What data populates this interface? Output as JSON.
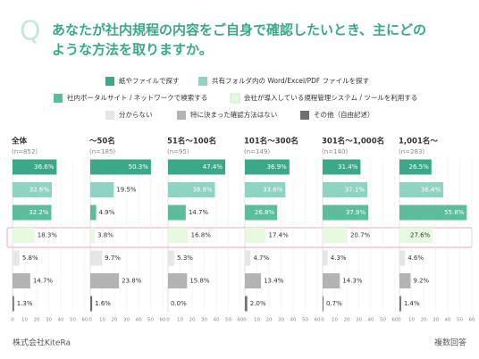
{
  "chart_data": {
    "type": "bar",
    "question_mark": "Q",
    "title_lines": [
      "あなたが社内規程の内容をご自身で確認したいとき、主にどの",
      "ような方法を取りますか。"
    ],
    "series": [
      {
        "name": "紙やファイルで探す",
        "color": "#3aa889"
      },
      {
        "name": "共有フォルダ内の Word/Excel/PDF ファイルを探す",
        "color": "#8fd3c2"
      },
      {
        "name": "社内ポータルサイト / ネットワークで検索する",
        "color": "#5cbd9c"
      },
      {
        "name": "会社が導入している規程管理システム / ツールを利用する",
        "color": "#e8f9e2"
      },
      {
        "name": "分からない",
        "color": "#e6e6e6"
      },
      {
        "name": "特に決まった確認方法はない",
        "color": "#b3b3b3"
      },
      {
        "name": "その他（自由記述）",
        "color": "#707070"
      }
    ],
    "panels": [
      {
        "title": "全体",
        "subtitle": "(n=852)",
        "values": [
          36.6,
          32.6,
          32.2,
          18.3,
          5.8,
          14.7,
          1.3
        ],
        "value_labels": [
          "36.6%",
          "32.6%",
          "32.2%",
          "18.3%",
          "5.8%",
          "14.7%",
          "1.3%"
        ]
      },
      {
        "title": "〜50名",
        "subtitle": "(n=185)",
        "values": [
          50.3,
          19.5,
          4.9,
          3.8,
          9.7,
          23.8,
          1.6
        ],
        "value_labels": [
          "50.3%",
          "19.5%",
          "4.9%",
          "3.8%",
          "9.7%",
          "23.8%",
          "1.6%"
        ]
      },
      {
        "title": "51名〜100名",
        "subtitle": "(n=95)",
        "values": [
          47.4,
          38.9,
          14.7,
          16.8,
          5.3,
          15.8,
          0.0
        ],
        "value_labels": [
          "47.4%",
          "38.9%",
          "14.7%",
          "16.8%",
          "5.3%",
          "15.8%",
          "0.0%"
        ]
      },
      {
        "title": "101名〜300名",
        "subtitle": "(n=149)",
        "values": [
          36.9,
          33.6,
          26.8,
          17.4,
          4.7,
          13.4,
          2.0
        ],
        "value_labels": [
          "36.9%",
          "33.6%",
          "26.8%",
          "17.4%",
          "4.7%",
          "13.4%",
          "2.0%"
        ]
      },
      {
        "title": "301名〜1,000名",
        "subtitle": "(n=140)",
        "values": [
          31.4,
          37.1,
          37.9,
          20.7,
          4.3,
          14.3,
          0.7
        ],
        "value_labels": [
          "31.4%",
          "37.1%",
          "37.9%",
          "20.7%",
          "4.3%",
          "14.3%",
          "0.7%"
        ]
      },
      {
        "title": "1,001名〜",
        "subtitle": "(n=283)",
        "values": [
          26.5,
          36.4,
          55.8,
          27.6,
          4.6,
          9.2,
          1.4
        ],
        "value_labels": [
          "26.5%",
          "36.4%",
          "55.8%",
          "27.6%",
          "4.6%",
          "9.2%",
          "1.4%"
        ]
      }
    ],
    "xlim": [
      0,
      60
    ],
    "xticks": [
      0,
      10,
      20,
      30,
      40,
      50,
      60
    ],
    "grid": true,
    "company": "株式会社KiteRa",
    "note": "複数回答"
  }
}
